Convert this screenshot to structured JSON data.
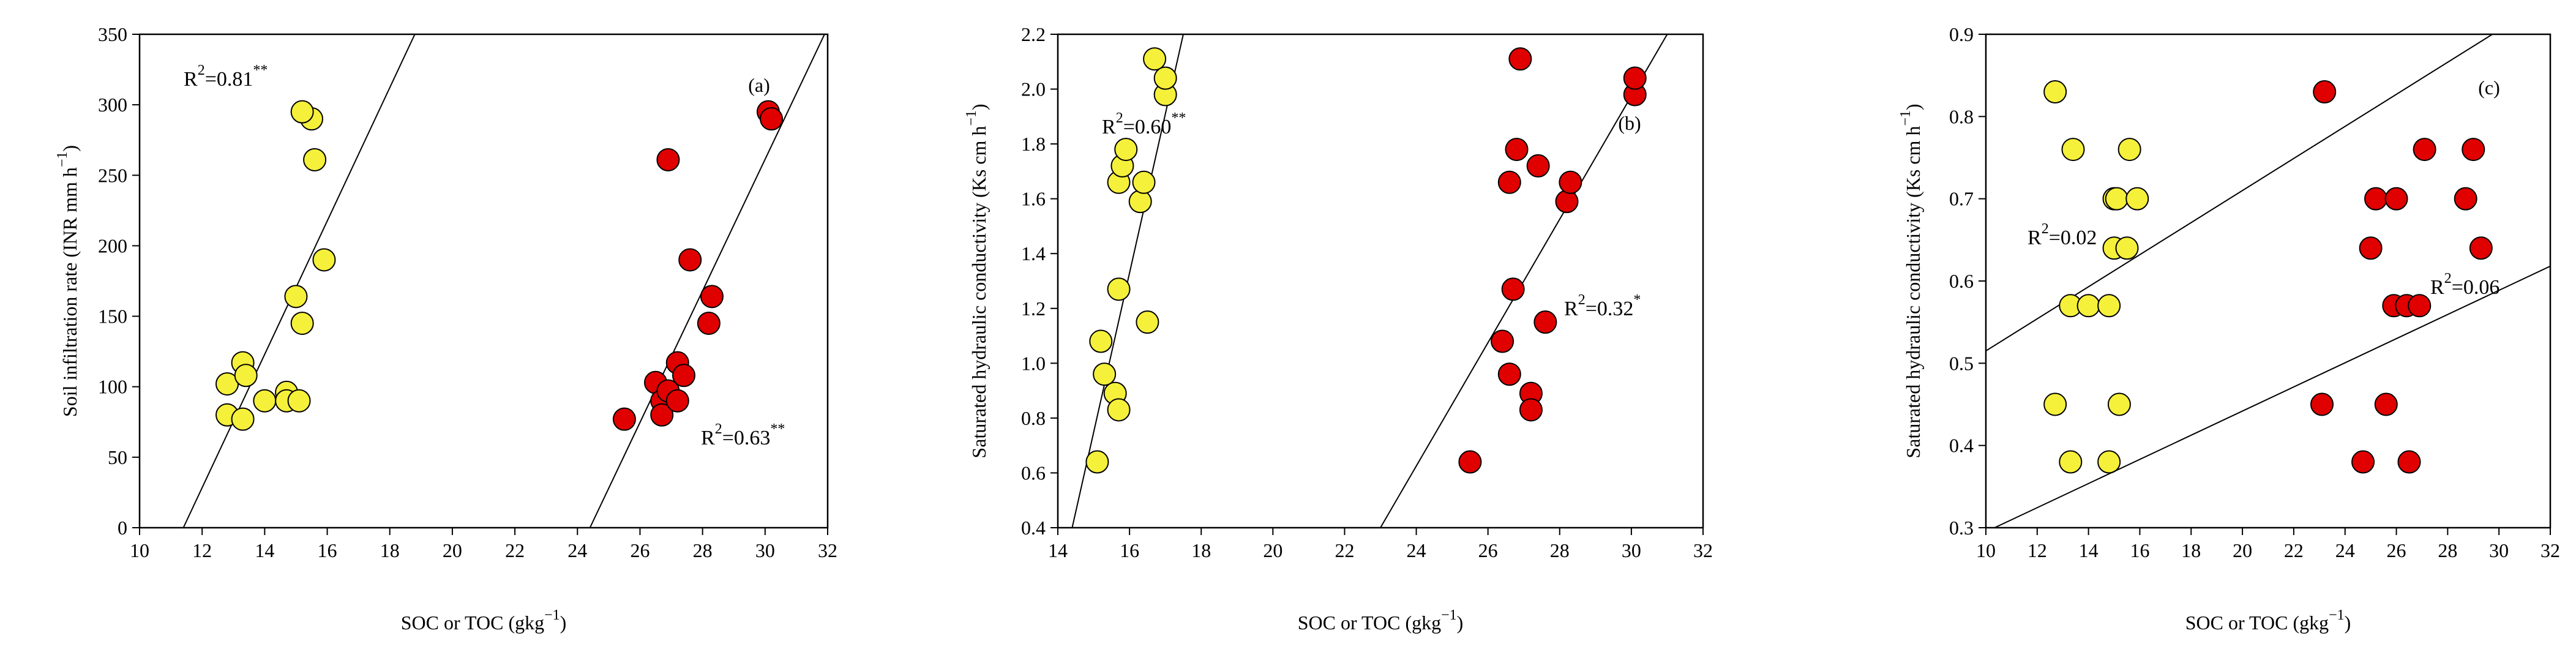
{
  "chart_data": [
    {
      "type": "scatter",
      "panel_label": "(a)",
      "xlabel": "SOC or TOC (gkg",
      "xlabel_sup": "−1",
      "xlabel_end": ")",
      "ylabel": "Soil infiltration rate (INR mm h",
      "ylabel_sup": "−1",
      "ylabel_end": ")",
      "xlim": [
        10,
        32
      ],
      "ylim": [
        0,
        350
      ],
      "xticks": [
        "10",
        "12",
        "14",
        "16",
        "18",
        "20",
        "22",
        "24",
        "26",
        "28",
        "30",
        "32"
      ],
      "yticks": [
        "0",
        "50",
        "100",
        "150",
        "200",
        "250",
        "300",
        "350"
      ],
      "series": [
        {
          "color": "#f5f03a",
          "points": [
            [
              12.8,
              102
            ],
            [
              12.8,
              80
            ],
            [
              13.3,
              117
            ],
            [
              13.4,
              108
            ],
            [
              13.3,
              77
            ],
            [
              14.0,
              90
            ],
            [
              14.7,
              96
            ],
            [
              14.7,
              90
            ],
            [
              15.1,
              90
            ],
            [
              15.0,
              164
            ],
            [
              15.2,
              145
            ],
            [
              15.9,
              190
            ],
            [
              15.6,
              261
            ],
            [
              15.5,
              290
            ],
            [
              15.2,
              295
            ]
          ],
          "fit_line": [
            [
              11.4,
              0
            ],
            [
              18.8,
              350
            ]
          ],
          "annotation": {
            "text": "R",
            "sup1": "2",
            "rest": "=0.81",
            "sup2": "**"
          }
        },
        {
          "color": "#e00000",
          "points": [
            [
              25.5,
              77
            ],
            [
              26.5,
              103
            ],
            [
              26.7,
              90
            ],
            [
              26.7,
              80
            ],
            [
              26.9,
              97
            ],
            [
              27.2,
              117
            ],
            [
              27.2,
              90
            ],
            [
              27.4,
              108
            ],
            [
              27.6,
              190
            ],
            [
              28.2,
              145
            ],
            [
              28.3,
              164
            ],
            [
              26.9,
              261
            ],
            [
              30.1,
              295
            ],
            [
              30.2,
              290
            ]
          ],
          "fit_line": [
            [
              24.4,
              0
            ],
            [
              31.9,
              350
            ]
          ],
          "annotation": {
            "text": "R",
            "sup1": "2",
            "rest": "=0.63",
            "sup2": "**"
          }
        }
      ]
    },
    {
      "type": "scatter",
      "panel_label": "(b)",
      "xlabel": "SOC or TOC (gkg",
      "xlabel_sup": "−1",
      "xlabel_end": ")",
      "ylabel": "Saturated hydraulic conductivity (Ks cm h",
      "ylabel_sup": "−1",
      "ylabel_end": ")",
      "xlim": [
        14,
        32
      ],
      "ylim": [
        0.4,
        2.2
      ],
      "xticks": [
        "14",
        "16",
        "18",
        "20",
        "22",
        "24",
        "26",
        "28",
        "30",
        "32"
      ],
      "yticks": [
        "0.4",
        "0.6",
        "0.8",
        "1.0",
        "1.2",
        "1.4",
        "1.6",
        "1.8",
        "2.0",
        "2.2"
      ],
      "series": [
        {
          "color": "#f5f03a",
          "points": [
            [
              15.1,
              0.64
            ],
            [
              15.2,
              1.08
            ],
            [
              15.3,
              0.96
            ],
            [
              15.6,
              0.89
            ],
            [
              15.7,
              0.83
            ],
            [
              15.7,
              1.27
            ],
            [
              15.7,
              1.66
            ],
            [
              15.8,
              1.72
            ],
            [
              15.9,
              1.78
            ],
            [
              16.3,
              1.59
            ],
            [
              16.4,
              1.66
            ],
            [
              16.5,
              1.15
            ],
            [
              16.7,
              2.11
            ],
            [
              17.0,
              1.98
            ],
            [
              17.0,
              2.04
            ]
          ],
          "fit_line": [
            [
              14.4,
              0.4
            ],
            [
              17.5,
              2.2
            ]
          ],
          "annotation": {
            "text": "R",
            "sup1": "2",
            "rest": "=0.60",
            "sup2": "**"
          }
        },
        {
          "color": "#e00000",
          "points": [
            [
              25.5,
              0.64
            ],
            [
              26.4,
              1.08
            ],
            [
              26.6,
              0.96
            ],
            [
              26.6,
              1.66
            ],
            [
              26.7,
              1.27
            ],
            [
              26.8,
              1.78
            ],
            [
              26.9,
              2.11
            ],
            [
              27.2,
              0.89
            ],
            [
              27.2,
              0.83
            ],
            [
              27.4,
              1.72
            ],
            [
              27.6,
              1.15
            ],
            [
              28.2,
              1.59
            ],
            [
              28.3,
              1.66
            ],
            [
              30.1,
              1.98
            ],
            [
              30.1,
              2.04
            ]
          ],
          "fit_line": [
            [
              23.0,
              0.4
            ],
            [
              31.0,
              2.2
            ]
          ],
          "annotation": {
            "text": "R",
            "sup1": "2",
            "rest": "=0.32",
            "sup2": "*"
          }
        }
      ]
    },
    {
      "type": "scatter",
      "panel_label": "(c)",
      "xlabel": "SOC or TOC (gkg",
      "xlabel_sup": "−1",
      "xlabel_end": ")",
      "ylabel": "Saturated hydraulic conductivity (Ks cm h",
      "ylabel_sup": "−1",
      "ylabel_end": ")",
      "xlim": [
        10,
        32
      ],
      "ylim": [
        0.3,
        0.9
      ],
      "xticks": [
        "10",
        "12",
        "14",
        "16",
        "18",
        "20",
        "22",
        "24",
        "26",
        "28",
        "30",
        "32"
      ],
      "yticks": [
        "0.3",
        "0.4",
        "0.5",
        "0.6",
        "0.7",
        "0.8",
        "0.9"
      ],
      "series": [
        {
          "color": "#f5f03a",
          "points": [
            [
              12.7,
              0.83
            ],
            [
              12.7,
              0.45
            ],
            [
              13.3,
              0.57
            ],
            [
              13.3,
              0.38
            ],
            [
              13.4,
              0.76
            ],
            [
              14.0,
              0.57
            ],
            [
              14.8,
              0.57
            ],
            [
              14.8,
              0.38
            ],
            [
              15.0,
              0.64
            ],
            [
              15.0,
              0.7
            ],
            [
              15.1,
              0.7
            ],
            [
              15.2,
              0.45
            ],
            [
              15.5,
              0.64
            ],
            [
              15.6,
              0.76
            ],
            [
              15.9,
              0.7
            ]
          ],
          "fit_line": [
            [
              10.0,
              0.515
            ],
            [
              30.0,
              0.905
            ]
          ],
          "annotation": {
            "text": "R",
            "sup1": "2",
            "rest": "=0.02",
            "sup2": ""
          }
        },
        {
          "color": "#e00000",
          "points": [
            [
              23.1,
              0.45
            ],
            [
              23.2,
              0.83
            ],
            [
              24.7,
              0.38
            ],
            [
              25.0,
              0.64
            ],
            [
              25.2,
              0.7
            ],
            [
              25.6,
              0.45
            ],
            [
              25.9,
              0.57
            ],
            [
              26.0,
              0.7
            ],
            [
              26.4,
              0.57
            ],
            [
              26.5,
              0.38
            ],
            [
              26.9,
              0.57
            ],
            [
              27.1,
              0.76
            ],
            [
              28.7,
              0.7
            ],
            [
              29.0,
              0.76
            ],
            [
              29.3,
              0.64
            ]
          ],
          "fit_line": [
            [
              10.0,
              0.295
            ],
            [
              32.0,
              0.618
            ]
          ],
          "annotation": {
            "text": "R",
            "sup1": "2",
            "rest": "=0.06",
            "sup2": ""
          }
        }
      ]
    }
  ]
}
